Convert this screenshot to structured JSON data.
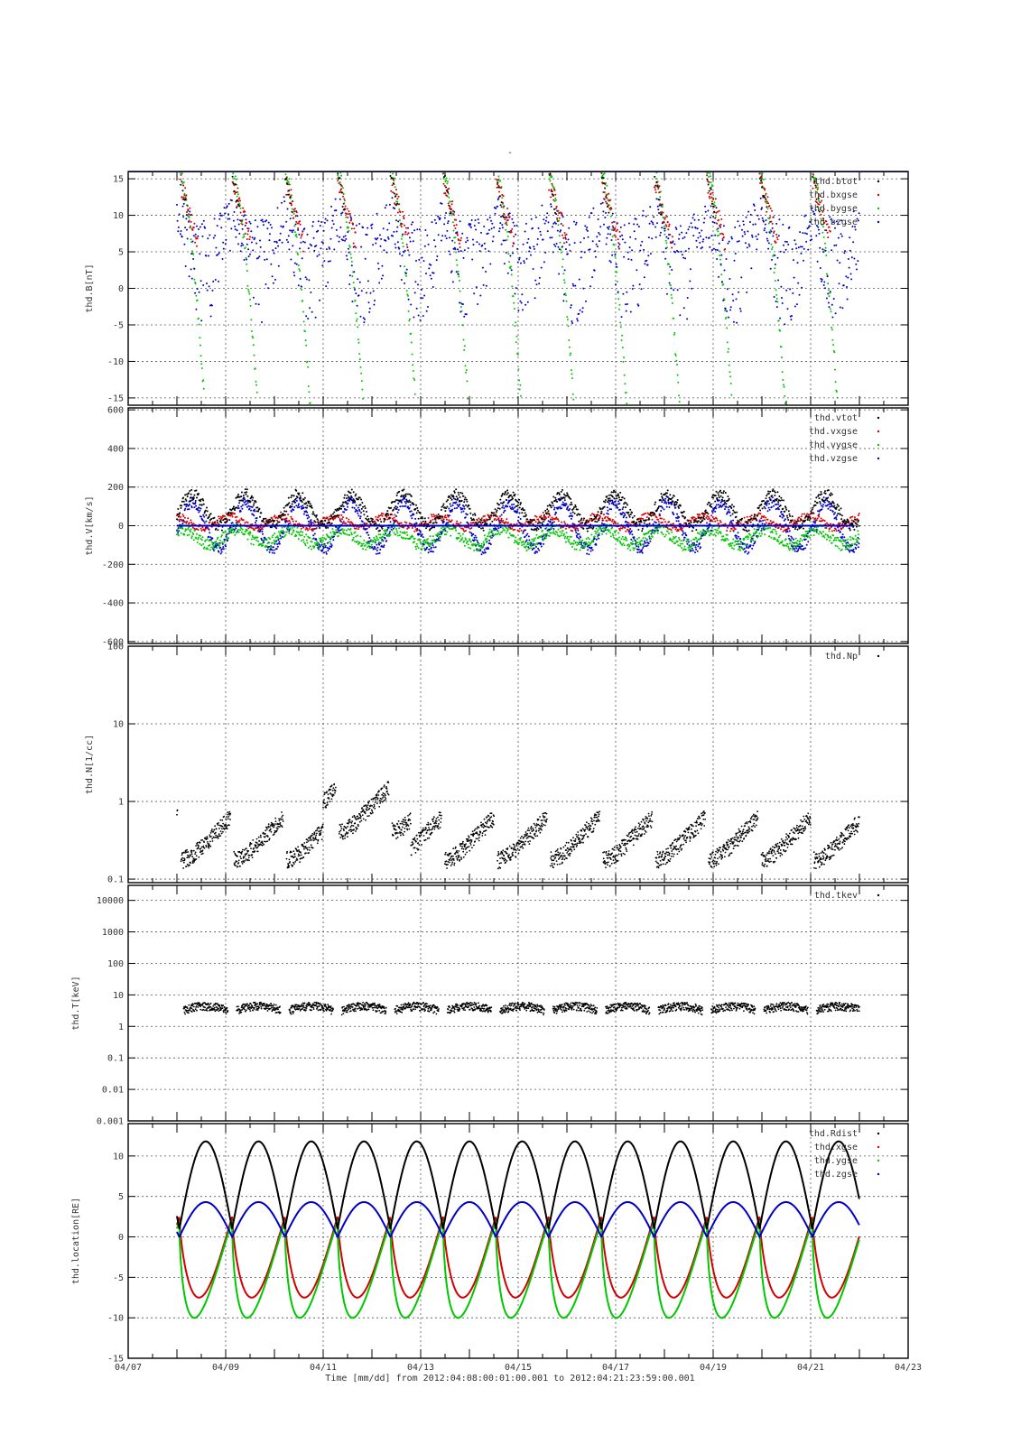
{
  "figure": {
    "title_mark": "-",
    "time_label": "Time [mm/dd]  from 2012:04:08:00:01:00.001  to  2012:04:21:23:59:00.001",
    "x_tick_labels": [
      "04/07",
      "04/09",
      "04/11",
      "04/13",
      "04/15",
      "04/17",
      "04/19",
      "04/21",
      "04/23"
    ]
  },
  "colors": {
    "black": "#000000",
    "red": "#d40000",
    "green": "#00c800",
    "blue": "#0000c8"
  },
  "chart_data": [
    {
      "type": "scatter",
      "ylabel": "thd.B[nT]",
      "ylim": [
        -16,
        16
      ],
      "yscale": "linear",
      "ticks": [
        15,
        10,
        5,
        0,
        -5,
        -10,
        -15
      ],
      "tick_labels": [
        "15",
        "10",
        "5",
        "0",
        "-5",
        "-10",
        "-15"
      ],
      "grid": true,
      "legend_position": "top-right",
      "series": [
        {
          "name": "thd.btot",
          "color": "black"
        },
        {
          "name": "thd.bxgse",
          "color": "red"
        },
        {
          "name": "thd.bygse",
          "color": "green"
        },
        {
          "name": "thd.bzgse",
          "color": "blue"
        }
      ]
    },
    {
      "type": "scatter",
      "ylabel": "thd.V[km/s]",
      "ylim": [
        -610,
        610
      ],
      "yscale": "linear",
      "ticks": [
        600,
        400,
        200,
        0,
        -200,
        -400,
        -600
      ],
      "tick_labels": [
        "600",
        "400",
        "200",
        "0",
        "-200",
        "-400",
        "-600"
      ],
      "grid": true,
      "legend_position": "top-right",
      "series": [
        {
          "name": "thd.vtot",
          "color": "black"
        },
        {
          "name": "thd.vxgse",
          "color": "red"
        },
        {
          "name": "thd.vygse",
          "color": "green"
        },
        {
          "name": "thd.vzgse",
          "color": "blue"
        }
      ]
    },
    {
      "type": "scatter",
      "ylabel": "thd.N[1/cc]",
      "ylim": [
        0.09,
        100
      ],
      "yscale": "log",
      "ticks": [
        100,
        10,
        1,
        0.1
      ],
      "tick_labels": [
        "100",
        "10",
        "1",
        "0.1"
      ],
      "grid": true,
      "legend_position": "top-right",
      "series": [
        {
          "name": "thd.Np",
          "color": "black"
        }
      ]
    },
    {
      "type": "scatter",
      "ylabel": "thd.T[keV]",
      "ylim": [
        0.001,
        30000
      ],
      "yscale": "log",
      "ticks": [
        10000,
        1000,
        100,
        10,
        1,
        0.1,
        0.01,
        0.001
      ],
      "tick_labels": [
        "10000",
        "1000",
        "100",
        "10",
        "1",
        "0.1",
        "0.01",
        "0.001"
      ],
      "grid": true,
      "legend_position": "top-right",
      "series": [
        {
          "name": "thd.tkev",
          "color": "black"
        }
      ]
    },
    {
      "type": "line",
      "ylabel": "thd.location[RE]",
      "ylim": [
        -15,
        14
      ],
      "yscale": "linear",
      "ticks": [
        10,
        5,
        0,
        -5,
        -10,
        -15
      ],
      "tick_labels": [
        "10",
        "5",
        "0",
        "-5",
        "-10",
        "-15"
      ],
      "grid": true,
      "legend_position": "top-right",
      "series": [
        {
          "name": "thd.Rdist",
          "color": "black",
          "apogee": 11.8
        },
        {
          "name": "thd.xgse",
          "color": "red",
          "min": -7.5,
          "max": 2.5
        },
        {
          "name": "thd.ygse",
          "color": "green",
          "min": -10,
          "max": 2
        },
        {
          "name": "thd.zgse",
          "color": "blue",
          "min": 0,
          "max": 4.3
        }
      ]
    }
  ]
}
